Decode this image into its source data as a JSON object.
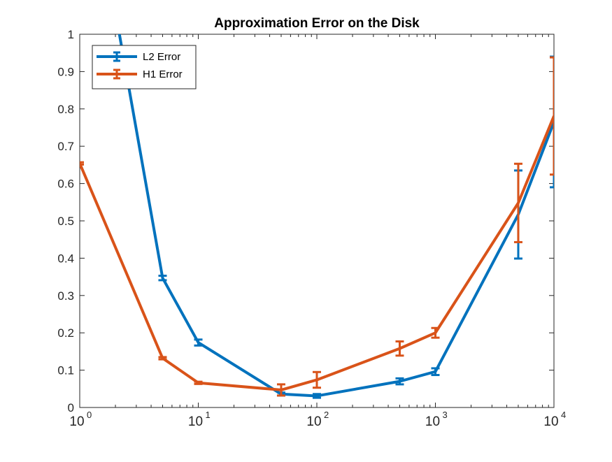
{
  "chart_data": {
    "type": "line",
    "title": "Approximation Error on the Disk",
    "xlabel": "",
    "ylabel": "",
    "xscale": "log",
    "xlim": [
      1,
      10000
    ],
    "ylim": [
      0,
      1
    ],
    "grid": false,
    "legend_position": "top-left",
    "x_ticks": [
      {
        "value": 1,
        "base": "10",
        "exp": "0"
      },
      {
        "value": 10,
        "base": "10",
        "exp": "1"
      },
      {
        "value": 100,
        "base": "10",
        "exp": "2"
      },
      {
        "value": 1000,
        "base": "10",
        "exp": "3"
      },
      {
        "value": 10000,
        "base": "10",
        "exp": "4"
      }
    ],
    "y_ticks": [
      {
        "value": 0,
        "label": "0"
      },
      {
        "value": 0.1,
        "label": "0.1"
      },
      {
        "value": 0.2,
        "label": "0.2"
      },
      {
        "value": 0.3,
        "label": "0.3"
      },
      {
        "value": 0.4,
        "label": "0.4"
      },
      {
        "value": 0.5,
        "label": "0.5"
      },
      {
        "value": 0.6,
        "label": "0.6"
      },
      {
        "value": 0.7,
        "label": "0.7"
      },
      {
        "value": 0.8,
        "label": "0.8"
      },
      {
        "value": 0.9,
        "label": "0.9"
      },
      {
        "value": 1,
        "label": "1"
      }
    ],
    "series": [
      {
        "name": "L2 Error",
        "color": "#0072BD",
        "x": [
          1,
          5,
          10,
          50,
          100,
          500,
          1000,
          5000,
          10000
        ],
        "y": [
          1.6,
          0.347,
          0.174,
          0.036,
          0.031,
          0.07,
          0.096,
          0.517,
          0.765
        ],
        "err": [
          0.0,
          0.006,
          0.008,
          0.004,
          0.005,
          0.008,
          0.009,
          0.118,
          0.175
        ]
      },
      {
        "name": "H1 Error",
        "color": "#D95319",
        "x": [
          1,
          5,
          10,
          50,
          100,
          500,
          1000,
          5000,
          10000
        ],
        "y": [
          0.654,
          0.132,
          0.066,
          0.047,
          0.074,
          0.158,
          0.2,
          0.548,
          0.781
        ],
        "err": [
          0.003,
          0.003,
          0.003,
          0.015,
          0.021,
          0.019,
          0.013,
          0.105,
          0.157
        ]
      }
    ]
  }
}
